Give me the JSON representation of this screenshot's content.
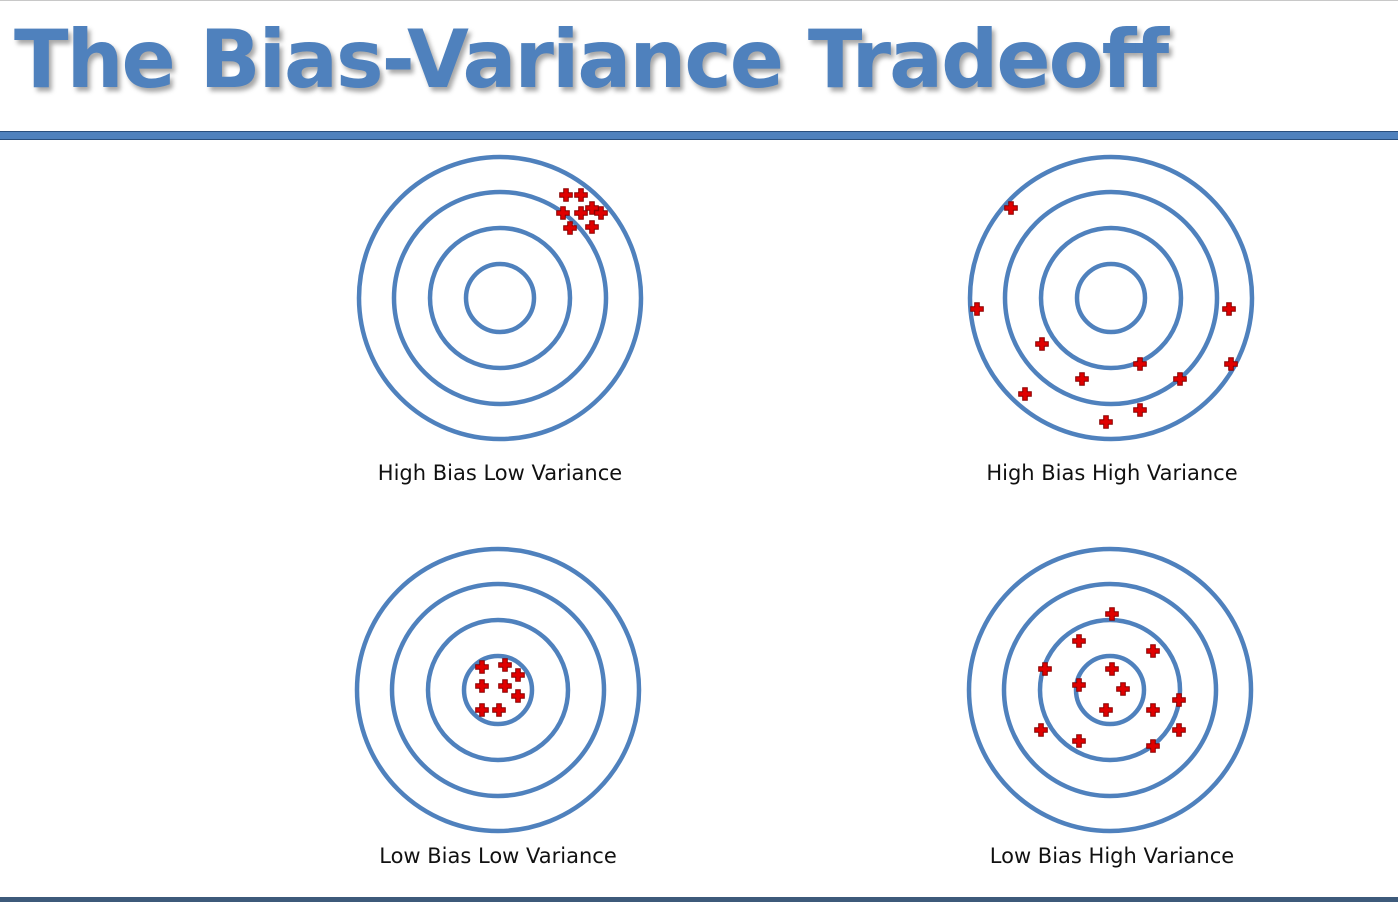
{
  "title": "The Bias-Variance Tradeoff",
  "colors": {
    "title": "#4f81bd",
    "ring": "#4f81bd",
    "marker": "#e00000",
    "marker_outline": "#8a0000",
    "rule": "#4f81bd"
  },
  "targets": [
    {
      "key": "hbl",
      "caption": "High Bias Low Variance",
      "hits": [
        [
          66,
          -103
        ],
        [
          81,
          -103
        ],
        [
          63,
          -85
        ],
        [
          81,
          -85
        ],
        [
          92,
          -90
        ],
        [
          101,
          -85
        ],
        [
          70,
          -70
        ],
        [
          92,
          -71
        ]
      ]
    },
    {
      "key": "hbh",
      "caption": "High Bias High Variance",
      "hits": [
        [
          -100,
          -90
        ],
        [
          -134,
          11
        ],
        [
          -69,
          46
        ],
        [
          -29,
          81
        ],
        [
          29,
          66
        ],
        [
          118,
          11
        ],
        [
          120,
          66
        ],
        [
          69,
          81
        ],
        [
          -86,
          96
        ],
        [
          -5,
          124
        ],
        [
          29,
          112
        ]
      ]
    },
    {
      "key": "lbl",
      "caption": "Low Bias Low Variance",
      "hits": [
        [
          -16,
          -23
        ],
        [
          7,
          -25
        ],
        [
          -16,
          -4
        ],
        [
          7,
          -4
        ],
        [
          20,
          -15
        ],
        [
          20,
          6
        ],
        [
          -16,
          20
        ],
        [
          1,
          20
        ]
      ]
    },
    {
      "key": "lbh",
      "caption": "Low Bias High Variance",
      "hits": [
        [
          2,
          -76
        ],
        [
          -31,
          -49
        ],
        [
          43,
          -39
        ],
        [
          -65,
          -21
        ],
        [
          2,
          -21
        ],
        [
          -31,
          -5
        ],
        [
          13,
          -1
        ],
        [
          -4,
          20
        ],
        [
          43,
          20
        ],
        [
          69,
          10
        ],
        [
          69,
          40
        ],
        [
          -69,
          40
        ],
        [
          -31,
          51
        ],
        [
          43,
          56
        ]
      ]
    }
  ]
}
